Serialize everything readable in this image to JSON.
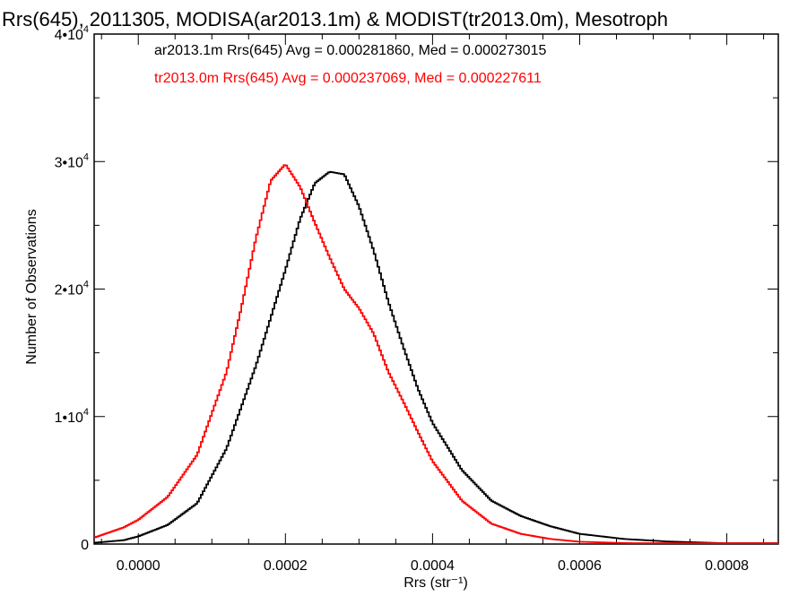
{
  "chart_data": {
    "type": "line",
    "title": "Rrs(645), 2011305, MODISA(ar2013.1m) & MODIST(tr2013.0m), Mesotroph",
    "xlabel": "Rrs (str⁻¹)",
    "ylabel": "Number of Observations",
    "xlim": [
      -6e-05,
      0.00087
    ],
    "ylim": [
      0,
      40000
    ],
    "grid": false,
    "x_ticks": [
      0.0,
      0.0002,
      0.0004,
      0.0006,
      0.0008
    ],
    "x_tick_labels": [
      "0.0000",
      "0.0002",
      "0.0004",
      "0.0006",
      "0.0008"
    ],
    "y_ticks": [
      0,
      10000,
      20000,
      30000,
      40000
    ],
    "y_tick_labels": [
      {
        "base": "0",
        "exp": ""
      },
      {
        "base": "1•10",
        "exp": "4"
      },
      {
        "base": "2•10",
        "exp": "4"
      },
      {
        "base": "3•10",
        "exp": "4"
      },
      {
        "base": "4•10",
        "exp": "4"
      }
    ],
    "legend_position": "top-left",
    "series": [
      {
        "name": "ar2013.1m",
        "legend": "ar2013.1m Rrs(645) Avg = 0.000281860, Med = 0.000273015",
        "color": "#000000",
        "step": true,
        "x": [
          -6e-05,
          -2e-05,
          0.0,
          4e-05,
          8e-05,
          0.00012,
          0.00016,
          0.0002,
          0.00022,
          0.00024,
          0.00026,
          0.00028,
          0.0003,
          0.00032,
          0.00034,
          0.00036,
          0.00038,
          0.0004,
          0.00044,
          0.00048,
          0.00052,
          0.00056,
          0.0006,
          0.00066,
          0.00072,
          0.0008,
          0.00087
        ],
        "y": [
          100,
          300,
          600,
          1500,
          3200,
          7500,
          14000,
          21500,
          25500,
          28300,
          29200,
          29000,
          26500,
          23000,
          19000,
          15500,
          12200,
          9500,
          5800,
          3400,
          2200,
          1400,
          800,
          400,
          200,
          60,
          20
        ]
      },
      {
        "name": "tr2013.0m",
        "legend": "tr2013.0m Rrs(645) Avg = 0.000237069, Med = 0.000227611",
        "color": "#ff0000",
        "step": true,
        "x": [
          -6e-05,
          -4e-05,
          -2e-05,
          0.0,
          4e-05,
          8e-05,
          0.00012,
          0.00014,
          0.00016,
          0.00018,
          0.0002,
          0.00022,
          0.00024,
          0.00026,
          0.00028,
          0.0003,
          0.00032,
          0.00034,
          0.00036,
          0.00038,
          0.0004,
          0.00044,
          0.00048,
          0.00052,
          0.00056,
          0.0006,
          0.00066,
          0.00072,
          0.0008,
          0.00087
        ],
        "y": [
          500,
          900,
          1300,
          1900,
          3700,
          7000,
          13500,
          18500,
          24000,
          28500,
          29800,
          28000,
          25200,
          22500,
          20000,
          18500,
          16500,
          13500,
          11200,
          8800,
          6500,
          3400,
          1600,
          800,
          400,
          180,
          80,
          40,
          10,
          5
        ]
      }
    ]
  }
}
